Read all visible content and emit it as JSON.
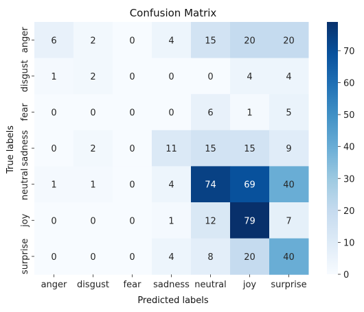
{
  "chart_data": {
    "type": "heatmap",
    "title": "Confusion Matrix",
    "xlabel": "Predicted labels",
    "ylabel": "True labels",
    "x_categories": [
      "anger",
      "disgust",
      "fear",
      "sadness",
      "neutral",
      "joy",
      "surprise"
    ],
    "y_categories": [
      "anger",
      "disgust",
      "fear",
      "sadness",
      "neutral",
      "joy",
      "surprise"
    ],
    "values": [
      [
        6,
        2,
        0,
        4,
        15,
        20,
        20
      ],
      [
        1,
        2,
        0,
        0,
        0,
        4,
        4
      ],
      [
        0,
        0,
        0,
        0,
        6,
        1,
        5
      ],
      [
        0,
        2,
        0,
        11,
        15,
        15,
        9
      ],
      [
        1,
        1,
        0,
        4,
        74,
        69,
        40
      ],
      [
        0,
        0,
        0,
        1,
        12,
        79,
        7
      ],
      [
        0,
        0,
        0,
        4,
        8,
        20,
        40
      ]
    ],
    "colormap": "Blues",
    "colorbar": {
      "min": 0,
      "max": 79,
      "ticks": [
        0,
        10,
        20,
        30,
        40,
        50,
        60,
        70
      ]
    },
    "annotations": true
  }
}
